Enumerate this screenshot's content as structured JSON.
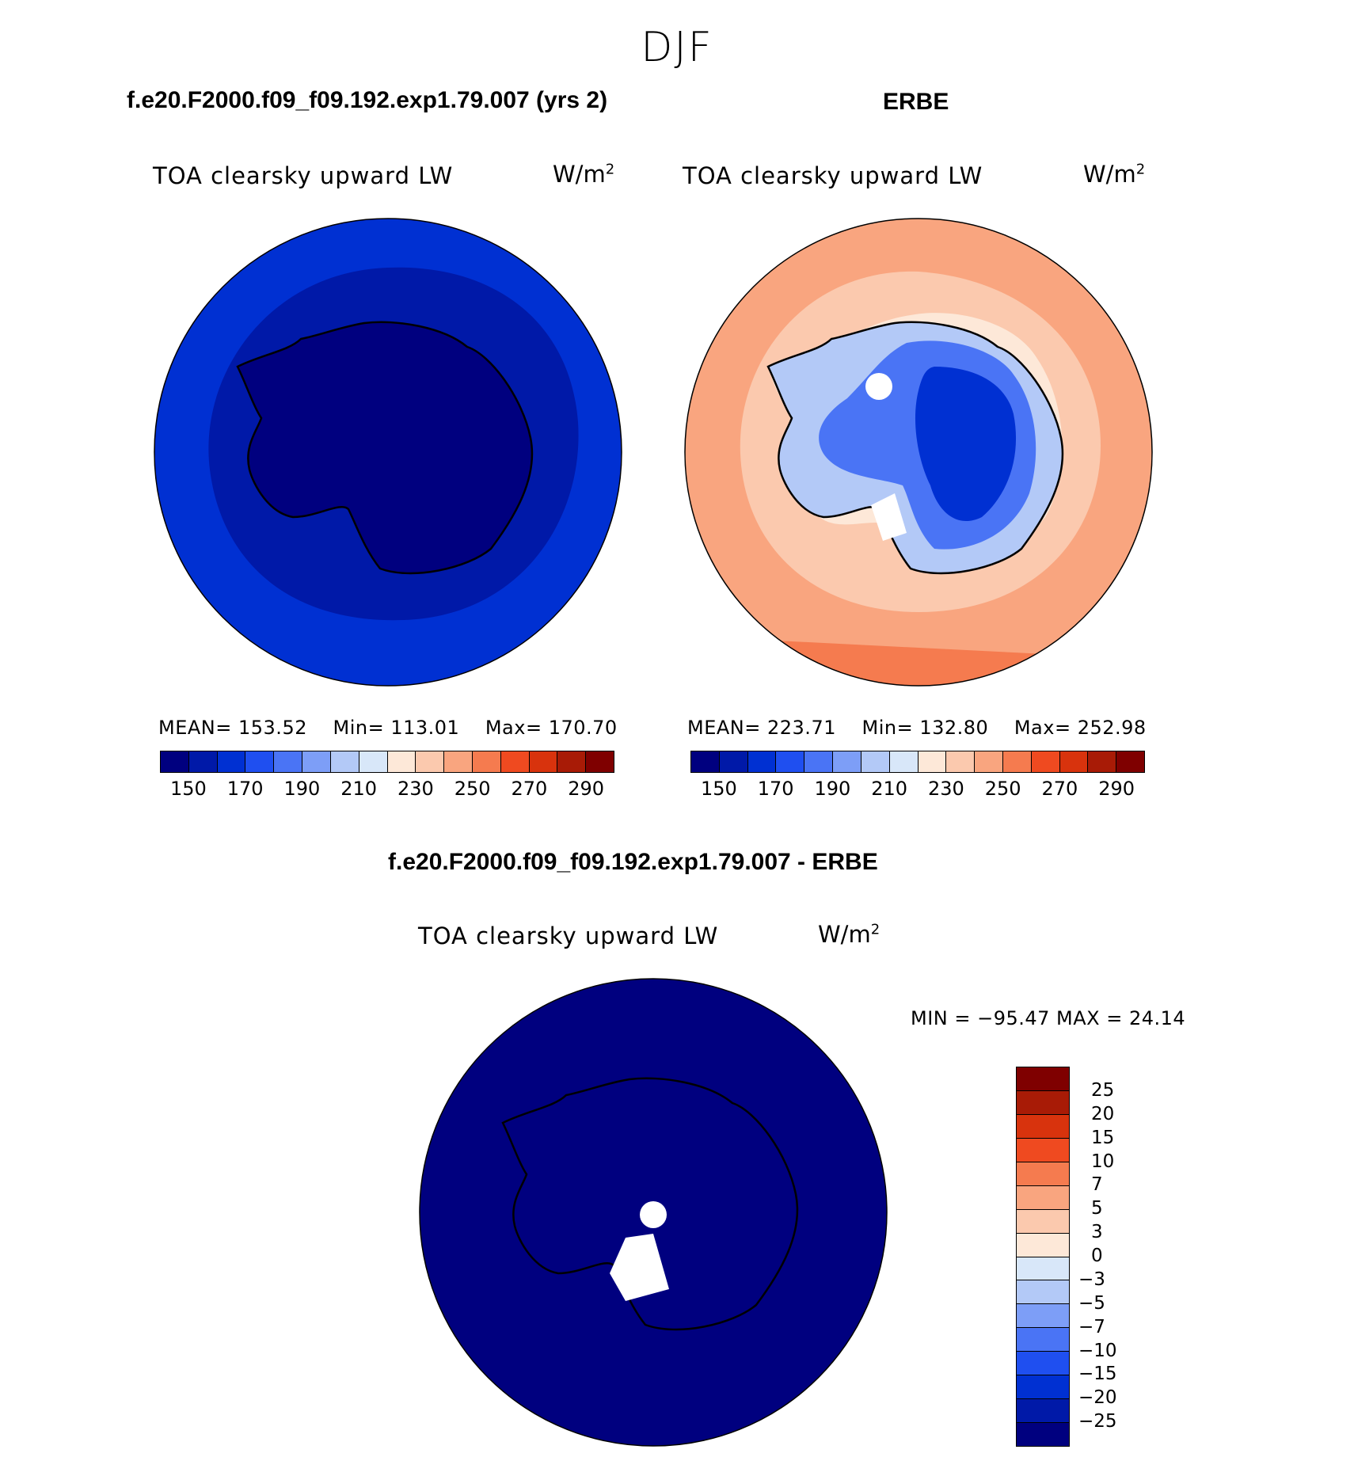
{
  "figure": {
    "title": "DJF"
  },
  "panels": [
    {
      "id": "model",
      "case_title": "f.e20.F2000.f09_f09.192.exp1.79.007 (yrs 2)",
      "variable": "TOA clearsky upward LW",
      "units": "W/m",
      "units_exp": "2",
      "stats": {
        "mean_label": "MEAN=",
        "mean": "153.52",
        "min_label": "Min=",
        "min": "113.01",
        "max_label": "Max=",
        "max": "170.70"
      },
      "colorbar_ticks": [
        "150",
        "170",
        "190",
        "210",
        "230",
        "250",
        "270",
        "290"
      ]
    },
    {
      "id": "obs",
      "case_title": "ERBE",
      "variable": "TOA clearsky upward LW",
      "units": "W/m",
      "units_exp": "2",
      "stats": {
        "mean_label": "MEAN=",
        "mean": "223.71",
        "min_label": "Min=",
        "min": "132.80",
        "max_label": "Max=",
        "max": "252.98"
      },
      "colorbar_ticks": [
        "150",
        "170",
        "190",
        "210",
        "230",
        "250",
        "270",
        "290"
      ]
    }
  ],
  "diff_panel": {
    "case_title": "f.e20.F2000.f09_f09.192.exp1.79.007 - ERBE",
    "variable": "TOA clearsky upward LW",
    "units": "W/m",
    "units_exp": "2",
    "minmax": "MIN = −95.47 MAX =   24.14",
    "colorbar_labels": [
      "25",
      "20",
      "15",
      "10",
      "7",
      "5",
      "3",
      "0",
      "−3",
      "−5",
      "−7",
      "−10",
      "−15",
      "−20",
      "−25"
    ]
  },
  "colors": {
    "abs_scale": [
      "#00007f",
      "#0019a8",
      "#0030d2",
      "#1f4ff0",
      "#4a74f5",
      "#7d9ef7",
      "#b3c9f7",
      "#d8e7f9",
      "#fde8d8",
      "#fbc9ae",
      "#f9a57f",
      "#f57b4f",
      "#ef4a20",
      "#d8330d",
      "#a81b06",
      "#7f0000"
    ],
    "diff_scale": [
      "#7f0000",
      "#a81b06",
      "#d8330d",
      "#ef4a20",
      "#f57b4f",
      "#f9a57f",
      "#fbc9ae",
      "#fde8d8",
      "#d8e7f9",
      "#b3c9f7",
      "#7d9ef7",
      "#4a74f5",
      "#1f4ff0",
      "#0030d2",
      "#0019a8",
      "#00007f"
    ]
  }
}
